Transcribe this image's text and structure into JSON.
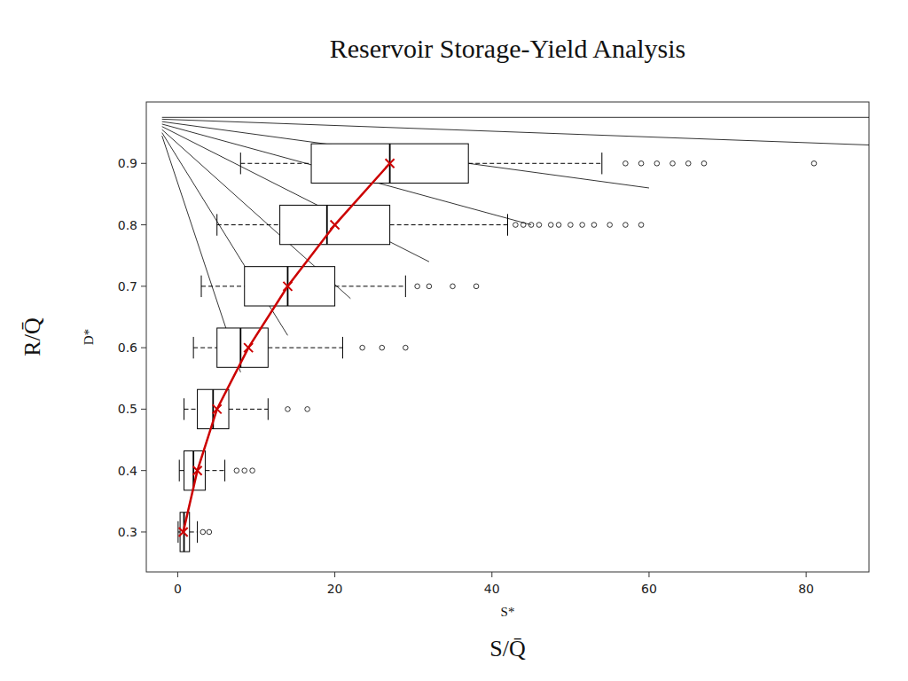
{
  "chart_data": {
    "type": "boxplot",
    "orientation": "horizontal",
    "title": "Reservoir Storage-Yield Analysis",
    "xlabel": "S/Q̄",
    "xlabel_secondary": "S*",
    "ylabel": "R/Q̄",
    "ylabel_secondary": "D*",
    "xlim": [
      -4,
      88
    ],
    "ylim": [
      0.235,
      1.0
    ],
    "xticks": [
      0,
      20,
      40,
      60,
      80
    ],
    "yticks": [
      0.3,
      0.4,
      0.5,
      0.6,
      0.7,
      0.8,
      0.9
    ],
    "grid": false,
    "y": [
      0.3,
      0.4,
      0.5,
      0.6,
      0.7,
      0.8,
      0.9
    ],
    "boxes": [
      {
        "q1": 0.3,
        "median": 0.8,
        "q3": 1.5,
        "whisker_low": 0.05,
        "whisker_high": 2.5,
        "outliers": [
          3.2,
          4.0
        ],
        "mean": 0.7
      },
      {
        "q1": 0.8,
        "median": 2.0,
        "q3": 3.5,
        "whisker_low": 0.2,
        "whisker_high": 6.0,
        "outliers": [
          7.5,
          8.5,
          9.5
        ],
        "mean": 2.5
      },
      {
        "q1": 2.5,
        "median": 4.5,
        "q3": 6.5,
        "whisker_low": 0.8,
        "whisker_high": 11.5,
        "outliers": [
          14.0,
          16.5
        ],
        "mean": 5.0
      },
      {
        "q1": 5.0,
        "median": 8.0,
        "q3": 11.5,
        "whisker_low": 2.0,
        "whisker_high": 21.0,
        "outliers": [
          23.5,
          26.0,
          29.0
        ],
        "mean": 9.0
      },
      {
        "q1": 8.5,
        "median": 14.0,
        "q3": 20.0,
        "whisker_low": 3.0,
        "whisker_high": 29.0,
        "outliers": [
          30.5,
          32.0,
          35.0,
          38.0
        ],
        "mean": 14.0
      },
      {
        "q1": 13.0,
        "median": 19.0,
        "q3": 27.0,
        "whisker_low": 5.0,
        "whisker_high": 42.0,
        "outliers": [
          43.0,
          44.0,
          45.0,
          46.0,
          47.5,
          48.5,
          50.0,
          51.5,
          53.0,
          55.0,
          57.0,
          59.0
        ],
        "mean": 20.0
      },
      {
        "q1": 17.0,
        "median": 27.0,
        "q3": 37.0,
        "whisker_low": 8.0,
        "whisker_high": 54.0,
        "outliers": [
          57.0,
          59.0,
          61.0,
          63.0,
          65.0,
          67.0,
          81.0
        ],
        "mean": 27.0
      }
    ],
    "mean_color": "#cc0000",
    "mean_line": {
      "type": "line",
      "color": "#cc0000",
      "x": [
        0.7,
        2.5,
        5.0,
        9.0,
        14.0,
        20.0,
        27.0
      ],
      "y": [
        0.3,
        0.4,
        0.5,
        0.6,
        0.7,
        0.8,
        0.9
      ]
    },
    "lines": [
      {
        "x1": -2,
        "y1": 0.975,
        "x2": 88,
        "y2": 0.975
      },
      {
        "x1": -2,
        "y1": 0.972,
        "x2": 88,
        "y2": 0.93
      },
      {
        "x1": -2,
        "y1": 0.968,
        "x2": 60,
        "y2": 0.86
      },
      {
        "x1": -2,
        "y1": 0.964,
        "x2": 45,
        "y2": 0.8
      },
      {
        "x1": -2,
        "y1": 0.96,
        "x2": 32,
        "y2": 0.74
      },
      {
        "x1": -2,
        "y1": 0.955,
        "x2": 22,
        "y2": 0.68
      },
      {
        "x1": -2,
        "y1": 0.95,
        "x2": 14,
        "y2": 0.62
      },
      {
        "x1": -2,
        "y1": 0.945,
        "x2": 8,
        "y2": 0.56
      }
    ]
  }
}
